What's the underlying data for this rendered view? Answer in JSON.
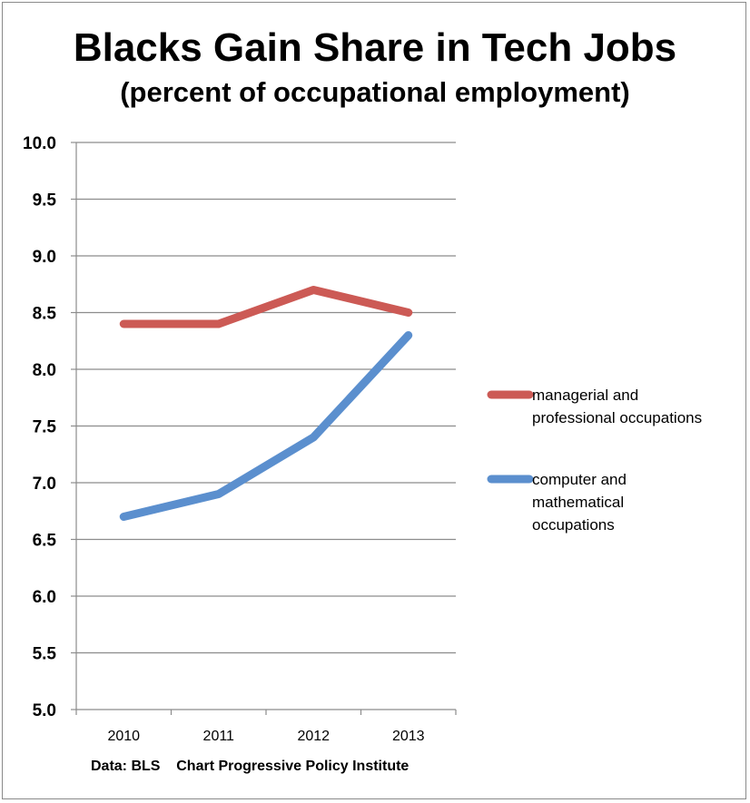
{
  "chart_data": {
    "type": "line",
    "title": "Blacks Gain Share in Tech Jobs",
    "subtitle": "(percent of occupational employment)",
    "x": [
      "2010",
      "2011",
      "2012",
      "2013"
    ],
    "ylim": [
      5.0,
      10.0
    ],
    "yticks": [
      "5.0",
      "5.5",
      "6.0",
      "6.5",
      "7.0",
      "7.5",
      "8.0",
      "8.5",
      "9.0",
      "9.5",
      "10.0"
    ],
    "grid": true,
    "legend_position": "right",
    "series": [
      {
        "name_lines": [
          "managerial and",
          "professional occupations"
        ],
        "color": "#cc5a55",
        "values": [
          8.4,
          8.4,
          8.7,
          8.5
        ]
      },
      {
        "name_lines": [
          "computer and",
          "mathematical",
          "occupations"
        ],
        "color": "#5b8fce",
        "values": [
          6.7,
          6.9,
          7.4,
          8.3
        ]
      }
    ],
    "footer": "Data: BLS    Chart Progressive Policy Institute"
  }
}
